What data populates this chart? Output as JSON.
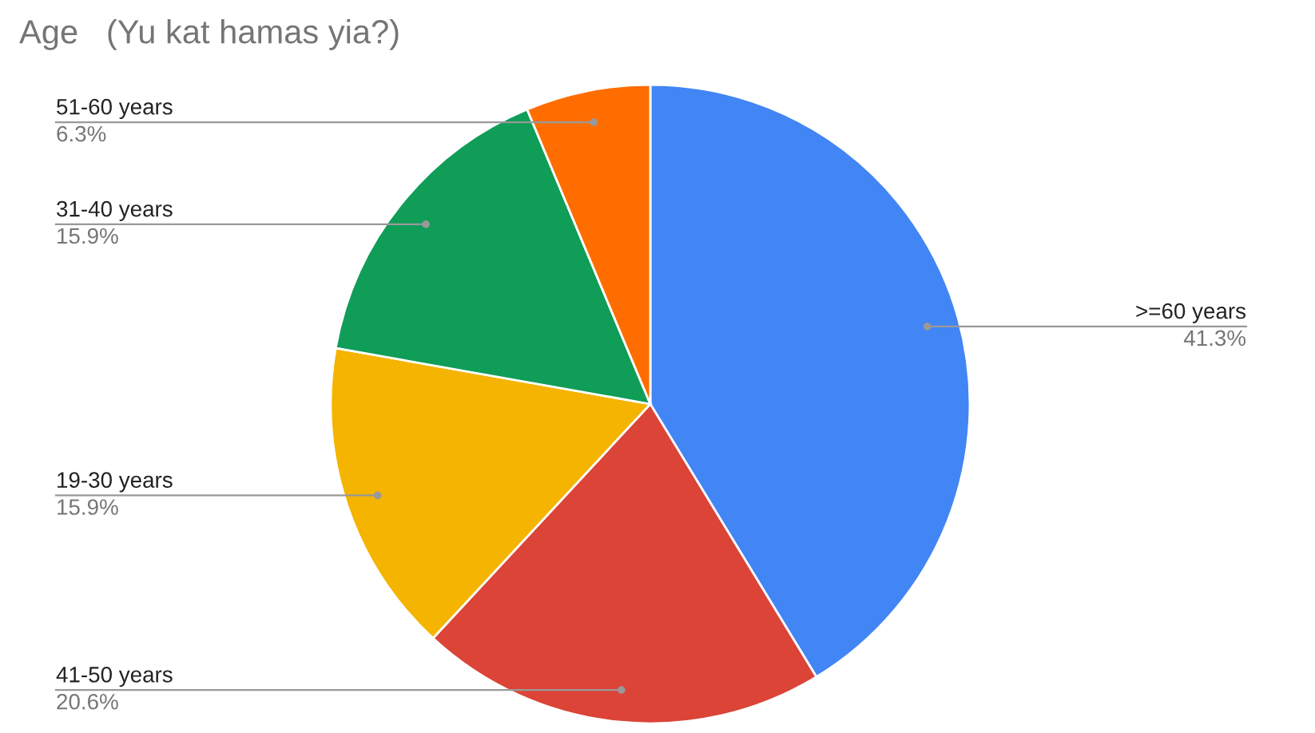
{
  "chart_data": {
    "type": "pie",
    "title": "Age   (Yu kat hamas yia?)",
    "categories": [
      ">=60 years",
      "41-50 years",
      "19-30 years",
      "31-40 years",
      "51-60 years"
    ],
    "values": [
      41.3,
      20.6,
      15.9,
      15.9,
      6.3
    ],
    "value_labels": [
      "41.3%",
      "20.6%",
      "15.9%",
      "15.9%",
      "6.3%"
    ],
    "colors": [
      "#4285f4",
      "#db4437",
      "#f4b400",
      "#0f9d58",
      "#ff6d00"
    ],
    "legend": false
  }
}
